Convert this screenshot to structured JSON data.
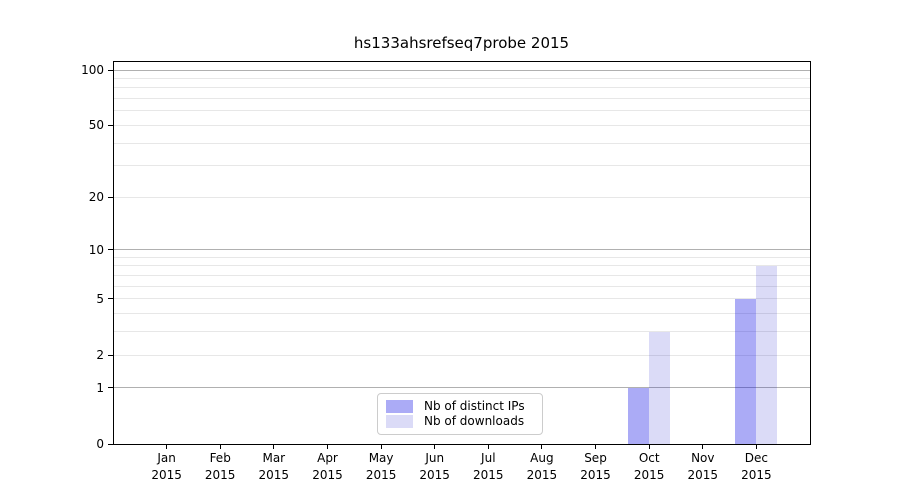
{
  "figure": {
    "title": "hs133ahsrefseq7probe 2015"
  },
  "chart_data": {
    "type": "bar",
    "title": "hs133ahsrefseq7probe 2015",
    "x_axis": {
      "months": [
        "Jan",
        "Feb",
        "Mar",
        "Apr",
        "May",
        "Jun",
        "Jul",
        "Aug",
        "Sep",
        "Oct",
        "Nov",
        "Dec"
      ],
      "year": "2015"
    },
    "y_axis": {
      "scale": "log1p",
      "ylim": [
        0,
        100
      ],
      "tick_values": [
        0,
        1,
        2,
        5,
        10,
        20,
        50,
        100
      ],
      "major_gridlines": [
        1,
        10,
        100
      ],
      "minor_gridlines": [
        2,
        3,
        4,
        5,
        6,
        7,
        8,
        9,
        20,
        30,
        40,
        50,
        60,
        70,
        80,
        90
      ]
    },
    "series": [
      {
        "name": "Nb of distinct IPs",
        "color": "rgba(0,0,228,0.33)",
        "values": [
          0,
          0,
          0,
          0,
          0,
          0,
          0,
          0,
          0,
          1,
          0,
          5
        ]
      },
      {
        "name": "Nb of downloads",
        "color": "rgba(0,0,200,0.14)",
        "values": [
          0,
          0,
          0,
          0,
          0,
          0,
          0,
          0,
          0,
          3,
          0,
          8
        ]
      }
    ],
    "legend": {
      "position": "lower center",
      "entries": [
        "Nb of distinct IPs",
        "Nb of downloads"
      ]
    },
    "grid": true
  },
  "colors": {
    "background": "#ffffff",
    "axis_frame": "#000000",
    "major_grid": "#b0b0b0",
    "minor_grid": "#e7e7e7",
    "text": "#000000",
    "legend_border": "#cccccc",
    "bar_distinct_ips_rendered": "#abaff6",
    "bar_downloads_rendered": "#dbdbf7"
  }
}
